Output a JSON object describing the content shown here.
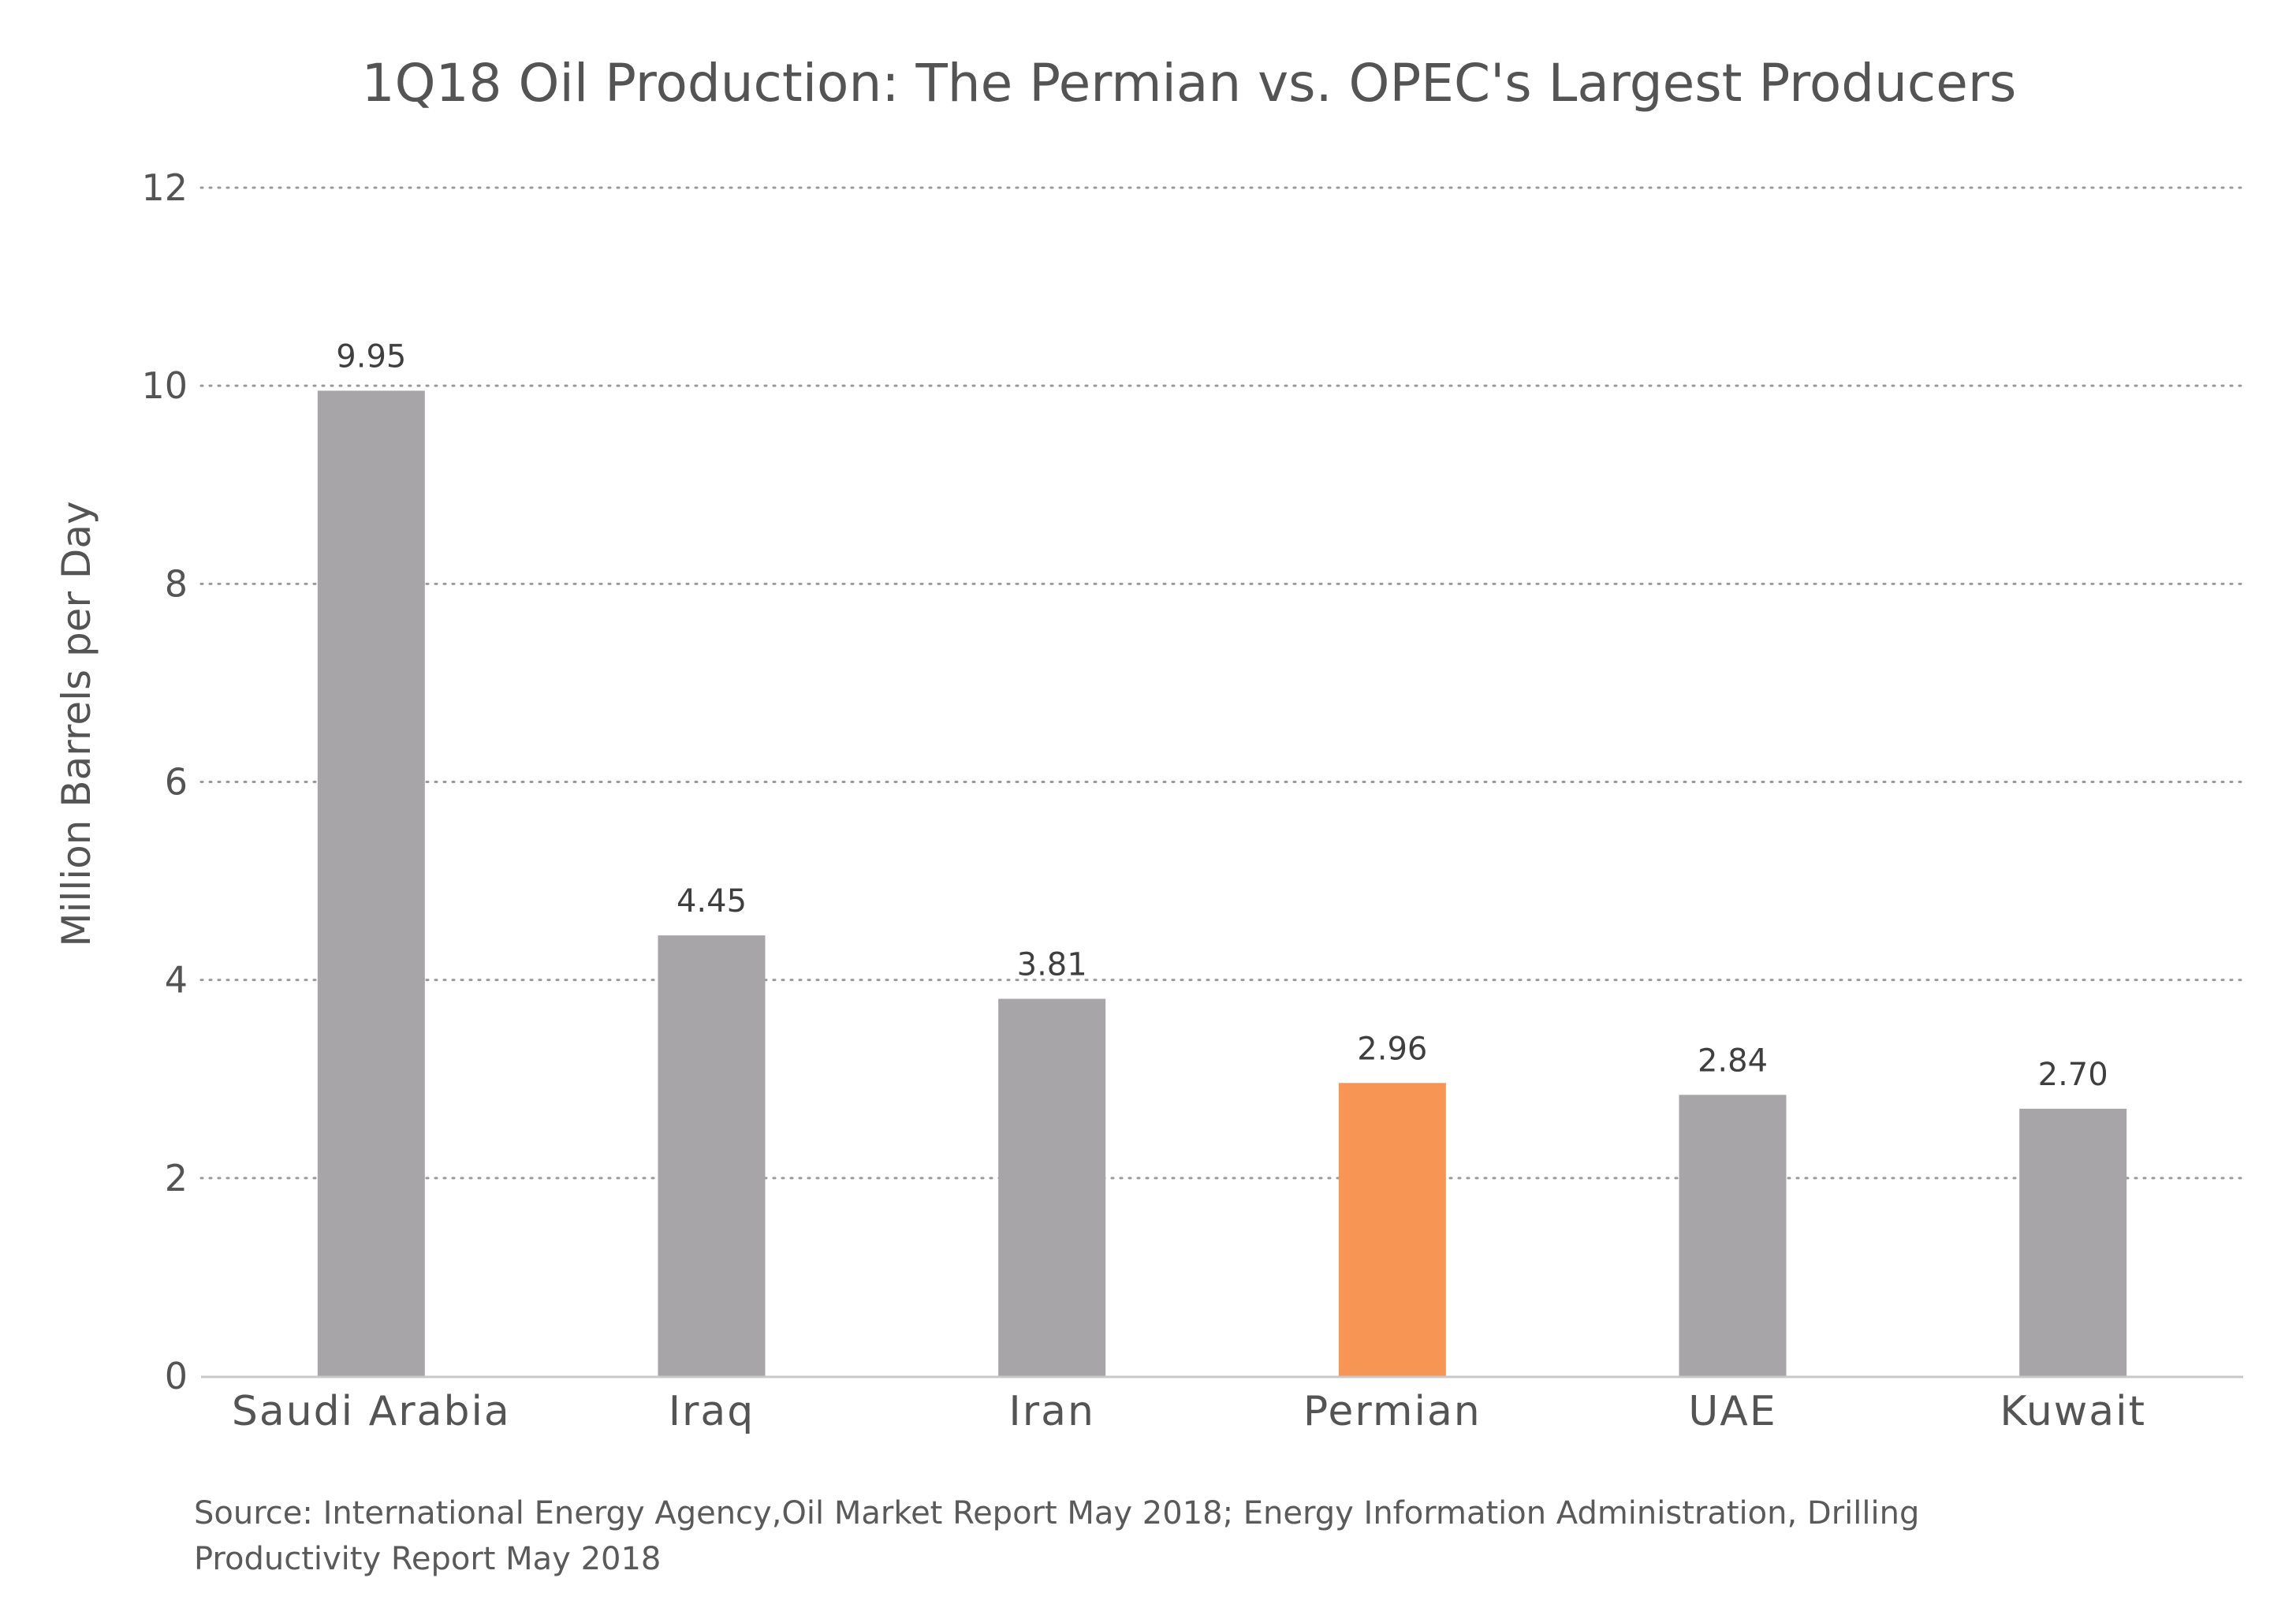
{
  "chart_data": {
    "type": "bar",
    "title": "1Q18 Oil Production: The Permian vs. OPEC's Largest Producers",
    "xlabel": "",
    "ylabel": "Million Barrels per Day",
    "categories": [
      "Saudi Arabia",
      "Iraq",
      "Iran",
      "Permian",
      "UAE",
      "Kuwait"
    ],
    "values": [
      9.95,
      4.45,
      3.81,
      2.96,
      2.84,
      2.7
    ],
    "value_labels": [
      "9.95",
      "4.45",
      "3.81",
      "2.96",
      "2.84",
      "2.70"
    ],
    "ylim": [
      0,
      12
    ],
    "yticks": [
      0,
      2,
      4,
      6,
      8,
      10,
      12
    ],
    "ytick_labels": [
      "0",
      "2",
      "4",
      "6",
      "8",
      "10",
      "12"
    ],
    "grid": true,
    "legend": "none",
    "colors": {
      "default_bar": "#a7a5a8",
      "highlight_bar": "#f79554",
      "grid": "#9a9a9a",
      "axis": "#c8c8c8"
    },
    "highlight_category": "Permian"
  },
  "source_text": "Source: International Energy Agency,Oil Market Report May 2018; Energy Information Administration, Drilling Productivity Report May 2018"
}
